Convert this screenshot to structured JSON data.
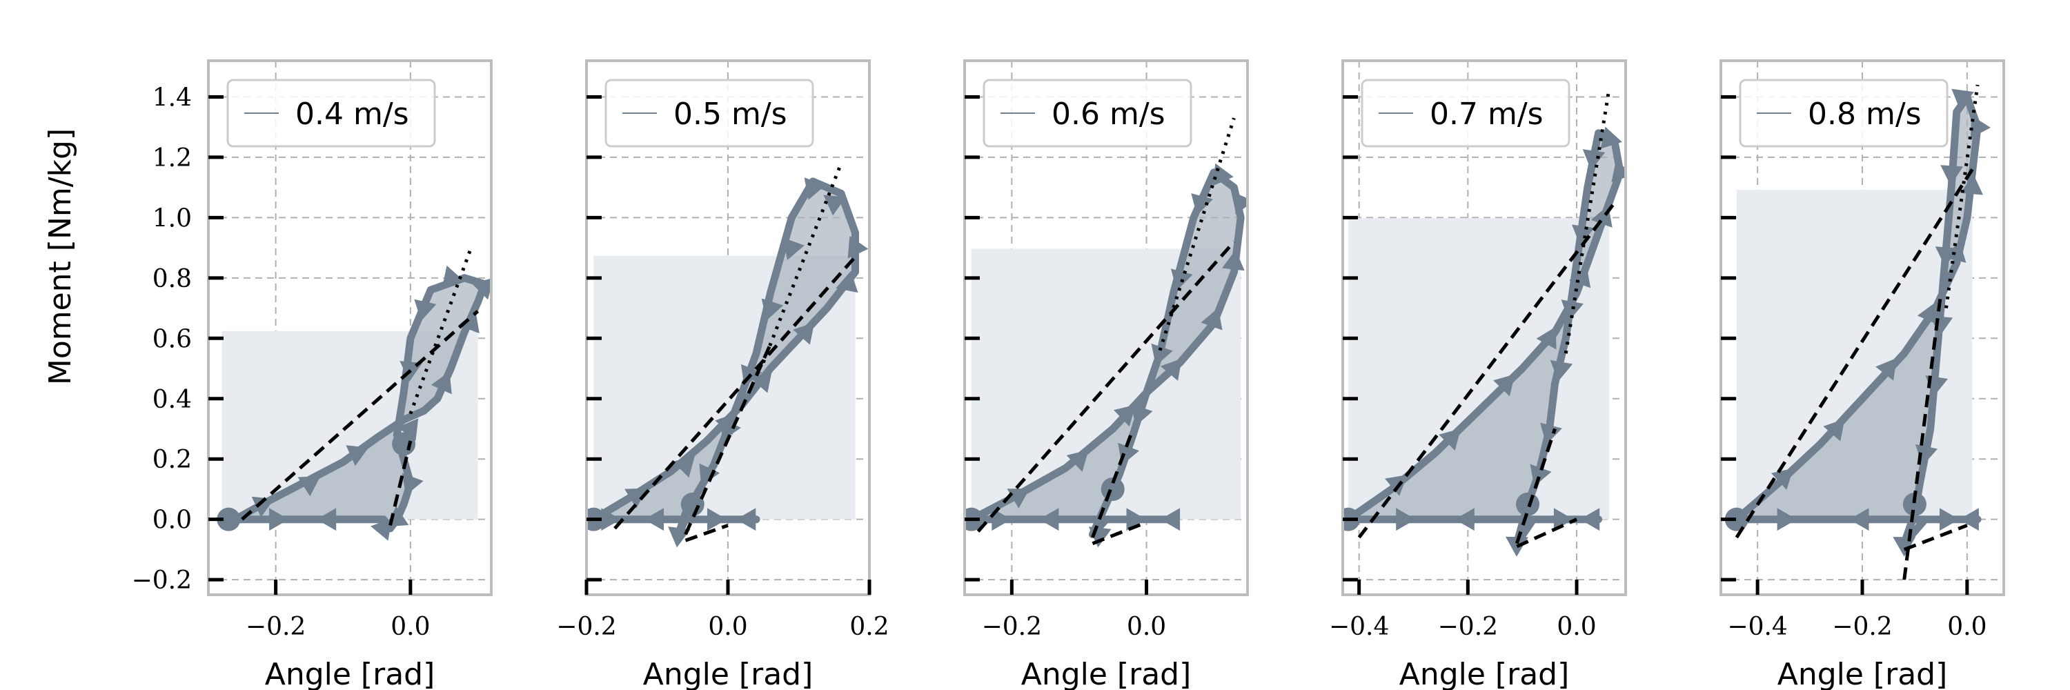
{
  "colors": {
    "series": "#708090",
    "fill_dark": "#a9b4bf",
    "fill_light": "#e8ebef",
    "grid": "#b0b0b0",
    "frame": "#bdbdbd",
    "fit": "#000000"
  },
  "figure": {
    "ylabel": "Moment [Nm/kg]",
    "xlabel": "Angle [rad]"
  },
  "chart_data": [
    {
      "type": "line",
      "legend": "0.4 m/s",
      "xlim": [
        -0.3,
        0.12
      ],
      "ylim": [
        -0.25,
        1.52
      ],
      "xticks": [
        -0.2,
        0.0
      ],
      "xtick_labels": [
        "−0.2",
        "0.0"
      ],
      "yticks": [
        -0.2,
        0.0,
        0.2,
        0.4,
        0.6,
        0.8,
        1.0,
        1.2,
        1.4
      ],
      "ytick_labels": [
        "−0.2",
        "0.0",
        "0.2",
        "0.4",
        "0.6",
        "0.8",
        "1.0",
        "1.2",
        "1.4"
      ],
      "show_ytick_labels": true,
      "xlabel": "Angle [rad]",
      "peak_angle": 0.1,
      "loop": [
        [
          -0.26,
          0.0
        ],
        [
          -0.22,
          0.05
        ],
        [
          -0.16,
          0.12
        ],
        [
          -0.1,
          0.19
        ],
        [
          -0.05,
          0.27
        ],
        [
          -0.01,
          0.33
        ],
        [
          0.02,
          0.36
        ],
        [
          0.04,
          0.4
        ],
        [
          0.06,
          0.5
        ],
        [
          0.08,
          0.62
        ],
        [
          0.1,
          0.72
        ],
        [
          0.11,
          0.78
        ],
        [
          0.08,
          0.8
        ],
        [
          0.03,
          0.76
        ],
        [
          0.0,
          0.6
        ],
        [
          -0.01,
          0.42
        ],
        [
          -0.02,
          0.28
        ],
        [
          -0.01,
          0.2
        ],
        [
          0.0,
          0.12
        ],
        [
          -0.01,
          0.05
        ],
        [
          -0.02,
          0.0
        ],
        [
          -0.03,
          -0.03
        ],
        [
          -0.04,
          0.0
        ],
        [
          -0.1,
          0.0
        ],
        [
          -0.2,
          0.0
        ],
        [
          -0.28,
          0.0
        ]
      ],
      "markers": [
        [
          -0.27,
          0.0
        ],
        [
          -0.22,
          0.05
        ],
        [
          -0.15,
          0.12
        ],
        [
          -0.08,
          0.22
        ],
        [
          0.0,
          0.3
        ],
        [
          0.05,
          0.45
        ],
        [
          0.09,
          0.65
        ],
        [
          0.11,
          0.77
        ],
        [
          0.06,
          0.8
        ],
        [
          0.02,
          0.7
        ],
        [
          0.0,
          0.5
        ],
        [
          -0.01,
          0.25
        ],
        [
          0.0,
          0.12
        ],
        [
          -0.02,
          0.0
        ],
        [
          -0.04,
          -0.03
        ],
        [
          -0.12,
          0.0
        ],
        [
          -0.2,
          0.0
        ]
      ],
      "fits": [
        {
          "style": "dashed",
          "x": [
            -0.25,
            0.1
          ],
          "y": [
            0.0,
            0.69
          ]
        },
        {
          "style": "dashed",
          "x": [
            -0.03,
            0.0
          ],
          "y": [
            -0.02,
            0.26
          ]
        },
        {
          "style": "dotted",
          "x": [
            0.0,
            0.09
          ],
          "y": [
            0.35,
            0.9
          ]
        }
      ]
    },
    {
      "type": "line",
      "legend": "0.5 m/s",
      "xlim": [
        -0.2,
        0.2
      ],
      "ylim": [
        -0.25,
        1.52
      ],
      "xticks": [
        -0.2,
        0.0,
        0.2
      ],
      "xtick_labels": [
        "−0.2",
        "0.0",
        "0.2"
      ],
      "yticks": [
        -0.2,
        0.0,
        0.2,
        0.4,
        0.6,
        0.8,
        1.0,
        1.2,
        1.4
      ],
      "ytick_labels": [
        "−0.2",
        "0.0",
        "0.2",
        "0.4",
        "0.6",
        "0.8",
        "1.0",
        "1.2",
        "1.4"
      ],
      "show_ytick_labels": false,
      "xlabel": "Angle [rad]",
      "peak_angle": 0.18,
      "loop": [
        [
          -0.19,
          0.0
        ],
        [
          -0.14,
          0.07
        ],
        [
          -0.08,
          0.16
        ],
        [
          -0.03,
          0.26
        ],
        [
          0.02,
          0.38
        ],
        [
          0.06,
          0.5
        ],
        [
          0.1,
          0.6
        ],
        [
          0.14,
          0.7
        ],
        [
          0.18,
          0.82
        ],
        [
          0.18,
          0.95
        ],
        [
          0.16,
          1.08
        ],
        [
          0.12,
          1.12
        ],
        [
          0.09,
          1.0
        ],
        [
          0.06,
          0.75
        ],
        [
          0.04,
          0.55
        ],
        [
          0.02,
          0.42
        ],
        [
          0.0,
          0.3
        ],
        [
          -0.02,
          0.18
        ],
        [
          -0.04,
          0.1
        ],
        [
          -0.06,
          0.02
        ],
        [
          -0.07,
          -0.05
        ],
        [
          -0.06,
          0.0
        ],
        [
          0.0,
          0.0
        ],
        [
          0.04,
          0.0
        ],
        [
          -0.05,
          0.0
        ],
        [
          -0.15,
          0.0
        ],
        [
          -0.19,
          0.0
        ]
      ],
      "markers": [
        [
          -0.19,
          0.0
        ],
        [
          -0.13,
          0.08
        ],
        [
          -0.06,
          0.18
        ],
        [
          0.0,
          0.32
        ],
        [
          0.05,
          0.46
        ],
        [
          0.11,
          0.62
        ],
        [
          0.17,
          0.78
        ],
        [
          0.18,
          0.9
        ],
        [
          0.15,
          1.05
        ],
        [
          0.12,
          1.1
        ],
        [
          0.09,
          0.9
        ],
        [
          0.06,
          0.7
        ],
        [
          0.03,
          0.48
        ],
        [
          0.0,
          0.3
        ],
        [
          -0.03,
          0.15
        ],
        [
          -0.05,
          0.05
        ],
        [
          -0.07,
          -0.05
        ],
        [
          -0.02,
          0.0
        ],
        [
          0.03,
          0.0
        ],
        [
          -0.1,
          0.0
        ],
        [
          -0.17,
          0.0
        ]
      ],
      "fits": [
        {
          "style": "dashed",
          "x": [
            -0.16,
            0.18
          ],
          "y": [
            -0.03,
            0.87
          ]
        },
        {
          "style": "dashed",
          "x": [
            -0.06,
            0.0
          ],
          "y": [
            -0.07,
            -0.02
          ]
        },
        {
          "style": "dashed",
          "x": [
            -0.06,
            0.06
          ],
          "y": [
            -0.05,
            0.58
          ]
        },
        {
          "style": "dotted",
          "x": [
            0.05,
            0.16
          ],
          "y": [
            0.52,
            1.18
          ]
        }
      ]
    },
    {
      "type": "line",
      "legend": "0.6 m/s",
      "xlim": [
        -0.27,
        0.15
      ],
      "ylim": [
        -0.25,
        1.52
      ],
      "xticks": [
        -0.2,
        0.0
      ],
      "xtick_labels": [
        "−0.2",
        "0.0"
      ],
      "yticks": [
        -0.2,
        0.0,
        0.2,
        0.4,
        0.6,
        0.8,
        1.0,
        1.2,
        1.4
      ],
      "ytick_labels": [
        "−0.2",
        "0.0",
        "0.2",
        "0.4",
        "0.6",
        "0.8",
        "1.0",
        "1.2",
        "1.4"
      ],
      "show_ytick_labels": false,
      "xlabel": "Angle [rad]",
      "peak_angle": 0.14,
      "loop": [
        [
          -0.26,
          0.0
        ],
        [
          -0.2,
          0.07
        ],
        [
          -0.12,
          0.17
        ],
        [
          -0.05,
          0.3
        ],
        [
          0.0,
          0.42
        ],
        [
          0.05,
          0.52
        ],
        [
          0.1,
          0.65
        ],
        [
          0.13,
          0.82
        ],
        [
          0.14,
          1.0
        ],
        [
          0.13,
          1.1
        ],
        [
          0.1,
          1.15
        ],
        [
          0.07,
          1.0
        ],
        [
          0.04,
          0.75
        ],
        [
          0.02,
          0.55
        ],
        [
          0.0,
          0.42
        ],
        [
          -0.02,
          0.28
        ],
        [
          -0.04,
          0.15
        ],
        [
          -0.06,
          0.05
        ],
        [
          -0.08,
          -0.05
        ],
        [
          -0.06,
          0.0
        ],
        [
          0.04,
          0.0
        ],
        [
          -0.1,
          0.0
        ],
        [
          -0.2,
          0.0
        ],
        [
          -0.26,
          0.0
        ]
      ],
      "markers": [
        [
          -0.26,
          0.0
        ],
        [
          -0.19,
          0.08
        ],
        [
          -0.1,
          0.2
        ],
        [
          -0.03,
          0.35
        ],
        [
          0.04,
          0.5
        ],
        [
          0.1,
          0.66
        ],
        [
          0.13,
          0.85
        ],
        [
          0.14,
          1.05
        ],
        [
          0.11,
          1.14
        ],
        [
          0.08,
          1.05
        ],
        [
          0.05,
          0.8
        ],
        [
          0.02,
          0.55
        ],
        [
          -0.01,
          0.35
        ],
        [
          -0.03,
          0.22
        ],
        [
          -0.05,
          0.1
        ],
        [
          -0.07,
          -0.05
        ],
        [
          -0.02,
          0.0
        ],
        [
          0.04,
          0.0
        ],
        [
          -0.14,
          0.0
        ],
        [
          -0.22,
          0.0
        ]
      ],
      "fits": [
        {
          "style": "dashed",
          "x": [
            -0.25,
            0.13
          ],
          "y": [
            -0.04,
            0.92
          ]
        },
        {
          "style": "dashed",
          "x": [
            -0.08,
            0.0
          ],
          "y": [
            -0.08,
            -0.01
          ]
        },
        {
          "style": "dashed",
          "x": [
            -0.08,
            -0.02
          ],
          "y": [
            -0.06,
            0.3
          ]
        },
        {
          "style": "dotted",
          "x": [
            0.02,
            0.13
          ],
          "y": [
            0.56,
            1.33
          ]
        }
      ]
    },
    {
      "type": "line",
      "legend": "0.7 m/s",
      "xlim": [
        -0.43,
        0.09
      ],
      "ylim": [
        -0.25,
        1.52
      ],
      "xticks": [
        -0.4,
        -0.2,
        0.0
      ],
      "xtick_labels": [
        "−0.4",
        "−0.2",
        "0.0"
      ],
      "yticks": [
        -0.2,
        0.0,
        0.2,
        0.4,
        0.6,
        0.8,
        1.0,
        1.2,
        1.4
      ],
      "ytick_labels": [
        "−0.2",
        "0.0",
        "0.2",
        "0.4",
        "0.6",
        "0.8",
        "1.0",
        "1.2",
        "1.4"
      ],
      "show_ytick_labels": false,
      "xlabel": "Angle [rad]",
      "peak_angle": 0.06,
      "loop": [
        [
          -0.42,
          0.0
        ],
        [
          -0.34,
          0.1
        ],
        [
          -0.26,
          0.22
        ],
        [
          -0.18,
          0.36
        ],
        [
          -0.1,
          0.5
        ],
        [
          -0.04,
          0.62
        ],
        [
          0.0,
          0.75
        ],
        [
          0.03,
          0.9
        ],
        [
          0.06,
          1.05
        ],
        [
          0.08,
          1.15
        ],
        [
          0.07,
          1.25
        ],
        [
          0.04,
          1.28
        ],
        [
          0.02,
          1.1
        ],
        [
          0.0,
          0.85
        ],
        [
          -0.02,
          0.6
        ],
        [
          -0.04,
          0.45
        ],
        [
          -0.05,
          0.3
        ],
        [
          -0.07,
          0.15
        ],
        [
          -0.09,
          0.05
        ],
        [
          -0.11,
          -0.08
        ],
        [
          -0.08,
          0.0
        ],
        [
          0.0,
          0.0
        ],
        [
          0.04,
          0.0
        ],
        [
          -0.1,
          0.0
        ],
        [
          -0.25,
          0.0
        ],
        [
          -0.42,
          0.0
        ]
      ],
      "markers": [
        [
          -0.42,
          0.0
        ],
        [
          -0.33,
          0.12
        ],
        [
          -0.23,
          0.27
        ],
        [
          -0.13,
          0.45
        ],
        [
          -0.05,
          0.6
        ],
        [
          0.01,
          0.8
        ],
        [
          0.05,
          1.0
        ],
        [
          0.08,
          1.15
        ],
        [
          0.06,
          1.26
        ],
        [
          0.03,
          1.2
        ],
        [
          0.01,
          0.95
        ],
        [
          -0.01,
          0.7
        ],
        [
          -0.03,
          0.5
        ],
        [
          -0.05,
          0.29
        ],
        [
          -0.07,
          0.15
        ],
        [
          -0.09,
          0.05
        ],
        [
          -0.11,
          -0.08
        ],
        [
          -0.03,
          0.0
        ],
        [
          0.03,
          0.0
        ],
        [
          -0.2,
          0.0
        ],
        [
          -0.32,
          0.0
        ]
      ],
      "fits": [
        {
          "style": "dashed",
          "x": [
            -0.4,
            0.07
          ],
          "y": [
            -0.06,
            1.05
          ]
        },
        {
          "style": "dashed",
          "x": [
            -0.11,
            0.0
          ],
          "y": [
            -0.09,
            0.0
          ]
        },
        {
          "style": "dashed",
          "x": [
            -0.11,
            -0.04
          ],
          "y": [
            -0.08,
            0.3
          ]
        },
        {
          "style": "dotted",
          "x": [
            -0.02,
            0.06
          ],
          "y": [
            0.55,
            1.43
          ]
        }
      ]
    },
    {
      "type": "line",
      "legend": "0.8 m/s",
      "xlim": [
        -0.47,
        0.07
      ],
      "ylim": [
        -0.25,
        1.52
      ],
      "xticks": [
        -0.4,
        -0.2,
        0.0
      ],
      "xtick_labels": [
        "−0.4",
        "−0.2",
        "0.0"
      ],
      "yticks": [
        -0.2,
        0.0,
        0.2,
        0.4,
        0.6,
        0.8,
        1.0,
        1.2,
        1.4
      ],
      "ytick_labels": [
        "−0.2",
        "0.0",
        "0.2",
        "0.4",
        "0.6",
        "0.8",
        "1.0",
        "1.2",
        "1.4"
      ],
      "show_ytick_labels": false,
      "xlabel": "Angle [rad]",
      "peak_angle": 0.01,
      "loop": [
        [
          -0.44,
          0.0
        ],
        [
          -0.36,
          0.12
        ],
        [
          -0.28,
          0.25
        ],
        [
          -0.2,
          0.4
        ],
        [
          -0.12,
          0.55
        ],
        [
          -0.06,
          0.7
        ],
        [
          -0.02,
          0.85
        ],
        [
          0.0,
          1.0
        ],
        [
          0.01,
          1.15
        ],
        [
          0.02,
          1.3
        ],
        [
          0.0,
          1.4
        ],
        [
          -0.02,
          1.35
        ],
        [
          -0.03,
          1.1
        ],
        [
          -0.04,
          0.9
        ],
        [
          -0.05,
          0.7
        ],
        [
          -0.06,
          0.5
        ],
        [
          -0.07,
          0.3
        ],
        [
          -0.09,
          0.12
        ],
        [
          -0.1,
          0.02
        ],
        [
          -0.12,
          -0.08
        ],
        [
          -0.08,
          0.0
        ],
        [
          0.0,
          0.0
        ],
        [
          0.02,
          0.0
        ],
        [
          -0.1,
          0.0
        ],
        [
          -0.3,
          0.0
        ],
        [
          -0.44,
          0.0
        ]
      ],
      "markers": [
        [
          -0.44,
          0.0
        ],
        [
          -0.35,
          0.14
        ],
        [
          -0.25,
          0.3
        ],
        [
          -0.15,
          0.5
        ],
        [
          -0.07,
          0.68
        ],
        [
          -0.02,
          0.88
        ],
        [
          0.01,
          1.1
        ],
        [
          0.02,
          1.3
        ],
        [
          -0.01,
          1.4
        ],
        [
          -0.03,
          1.15
        ],
        [
          -0.04,
          0.88
        ],
        [
          -0.05,
          0.65
        ],
        [
          -0.06,
          0.45
        ],
        [
          -0.08,
          0.22
        ],
        [
          -0.1,
          0.05
        ],
        [
          -0.12,
          -0.08
        ],
        [
          -0.04,
          0.0
        ],
        [
          0.01,
          0.0
        ],
        [
          -0.2,
          0.0
        ],
        [
          -0.35,
          0.0
        ]
      ],
      "fits": [
        {
          "style": "dashed",
          "x": [
            -0.44,
            0.01
          ],
          "y": [
            -0.06,
            1.16
          ]
        },
        {
          "style": "dashed",
          "x": [
            -0.12,
            0.0
          ],
          "y": [
            -0.1,
            -0.02
          ]
        },
        {
          "style": "dashed",
          "x": [
            -0.12,
            -0.05
          ],
          "y": [
            -0.2,
            0.75
          ]
        },
        {
          "style": "dotted",
          "x": [
            -0.04,
            0.02
          ],
          "y": [
            0.7,
            1.44
          ]
        }
      ]
    }
  ]
}
